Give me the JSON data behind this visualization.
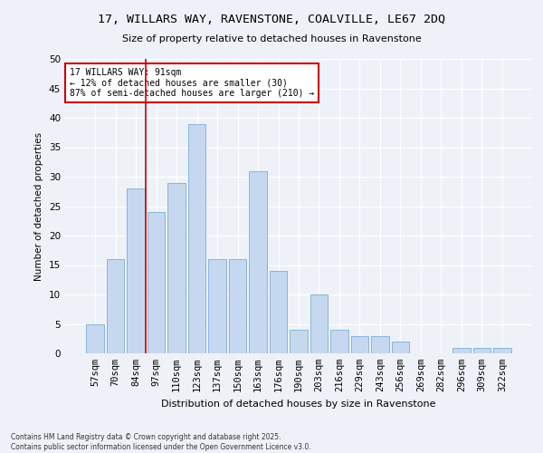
{
  "title_line1": "17, WILLARS WAY, RAVENSTONE, COALVILLE, LE67 2DQ",
  "title_line2": "Size of property relative to detached houses in Ravenstone",
  "xlabel": "Distribution of detached houses by size in Ravenstone",
  "ylabel": "Number of detached properties",
  "categories": [
    "57sqm",
    "70sqm",
    "84sqm",
    "97sqm",
    "110sqm",
    "123sqm",
    "137sqm",
    "150sqm",
    "163sqm",
    "176sqm",
    "190sqm",
    "203sqm",
    "216sqm",
    "229sqm",
    "243sqm",
    "256sqm",
    "269sqm",
    "282sqm",
    "296sqm",
    "309sqm",
    "322sqm"
  ],
  "values": [
    5,
    16,
    28,
    24,
    29,
    39,
    16,
    16,
    31,
    14,
    4,
    10,
    4,
    3,
    3,
    2,
    0,
    0,
    1,
    1,
    1
  ],
  "bar_color": "#c5d8f0",
  "bar_edge_color": "#8ab4d8",
  "vline_index": 2,
  "vline_color": "#cc0000",
  "annotation_text": "17 WILLARS WAY: 91sqm\n← 12% of detached houses are smaller (30)\n87% of semi-detached houses are larger (210) →",
  "annotation_box_color": "#ffffff",
  "annotation_box_edge": "#cc0000",
  "ylim": [
    0,
    50
  ],
  "yticks": [
    0,
    5,
    10,
    15,
    20,
    25,
    30,
    35,
    40,
    45,
    50
  ],
  "background_color": "#eef2f8",
  "grid_color": "#ffffff",
  "footer_line1": "Contains HM Land Registry data © Crown copyright and database right 2025.",
  "footer_line2": "Contains public sector information licensed under the Open Government Licence v3.0."
}
